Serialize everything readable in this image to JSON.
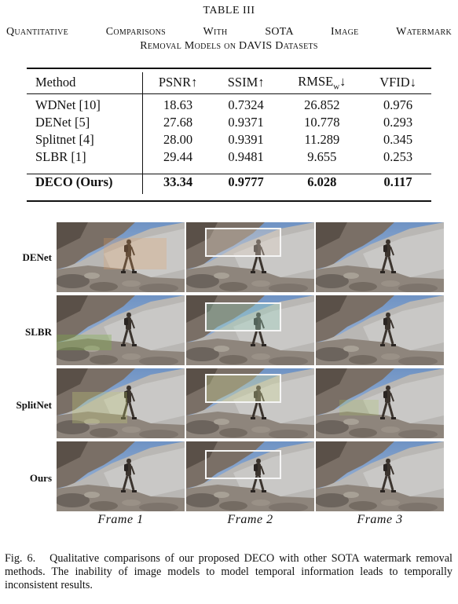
{
  "table": {
    "number": "TABLE III",
    "title_line1": "Quantitative Comparisons With SOTA Image Watermark",
    "title_line2": "Removal Models on DAVIS Datasets",
    "headers": [
      "Method",
      "PSNR↑",
      "SSIM↑",
      "RMSE",
      "VFID↓"
    ],
    "rmse_sub": "w",
    "rmse_arrow": "↓",
    "rows": [
      {
        "method": "WDNet [10]",
        "psnr": "18.63",
        "ssim": "0.7324",
        "rmse": "26.852",
        "vfid": "0.976"
      },
      {
        "method": "DENet [5]",
        "psnr": "27.68",
        "ssim": "0.9371",
        "rmse": "10.778",
        "vfid": "0.293"
      },
      {
        "method": "Splitnet [4]",
        "psnr": "28.00",
        "ssim": "0.9391",
        "rmse": "11.289",
        "vfid": "0.345"
      },
      {
        "method": "SLBR [1]",
        "psnr": "29.44",
        "ssim": "0.9481",
        "rmse": "9.655",
        "vfid": "0.253"
      }
    ],
    "best": {
      "method": "DECO (Ours)",
      "psnr": "33.34",
      "ssim": "0.9777",
      "rmse": "6.028",
      "vfid": "0.117"
    }
  },
  "figure": {
    "row_labels": [
      "DENet",
      "SLBR",
      "SplitNet",
      "Ours"
    ],
    "frame_labels": [
      "Frame 1",
      "Frame 2",
      "Frame 3"
    ],
    "caption_label": "Fig. 6.",
    "caption_text": "Qualitative comparisons of our proposed DECO with other SOTA watermark removal methods. The inability of image models to model temporal information leads to temporally inconsistent results."
  }
}
